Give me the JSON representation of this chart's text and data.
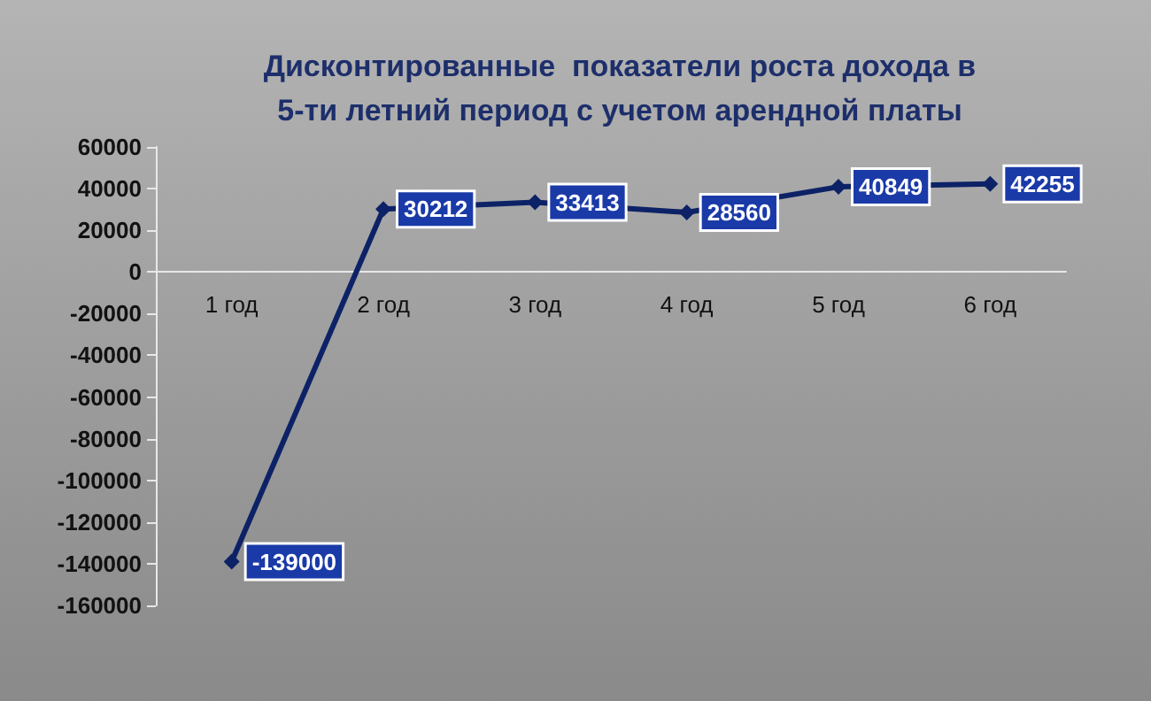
{
  "chart_data": {
    "type": "line",
    "title": "Дисконтированные  показатели роста дохода в\n5-ти летний период с учетом арендной платы",
    "categories": [
      "1 год",
      "2 год",
      "3 год",
      "4 год",
      "5 год",
      "6 год"
    ],
    "series": [
      {
        "color": "#0d2266",
        "values": [
          -139000,
          30212,
          33413,
          28560,
          40849,
          42255
        ]
      }
    ],
    "ylim": [
      -160000,
      60000
    ],
    "yticks": [
      -160000,
      -140000,
      -120000,
      -100000,
      -80000,
      -60000,
      -40000,
      -20000,
      0,
      20000,
      40000,
      60000
    ],
    "grid": false,
    "marker": "diamond",
    "line_style": "solid",
    "data_labels": true
  }
}
